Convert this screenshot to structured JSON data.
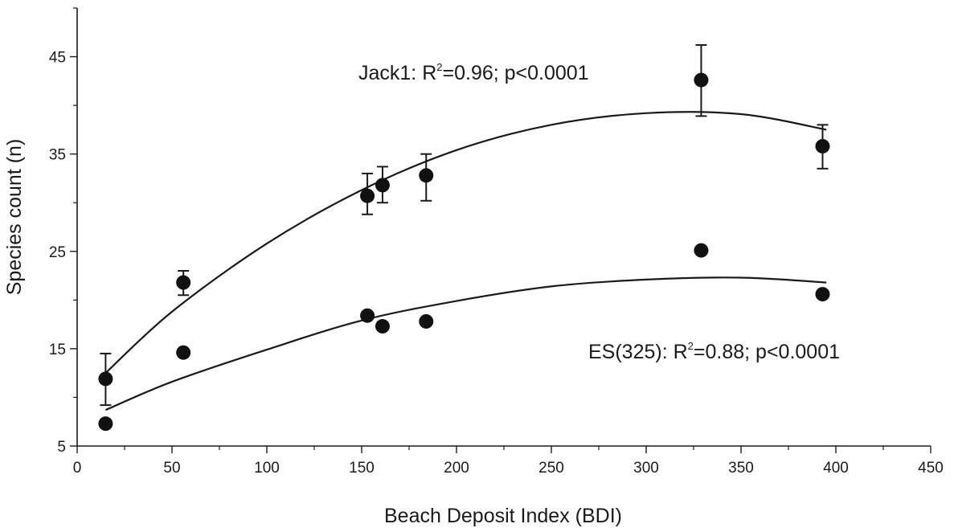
{
  "chart_data": {
    "type": "scatter",
    "xlabel": "Beach Deposit Index (BDI)",
    "ylabel": "Species count (n)",
    "xlim": [
      0,
      450
    ],
    "ylim": [
      5,
      50
    ],
    "x_ticks": [
      0,
      50,
      100,
      150,
      200,
      250,
      300,
      350,
      400,
      450
    ],
    "y_ticks": [
      5,
      15,
      25,
      35,
      45
    ],
    "grid": false,
    "series": [
      {
        "points": [
          {
            "x": 15,
            "y": 11.9,
            "err_low": 9.2,
            "err_high": 14.5
          },
          {
            "x": 56,
            "y": 21.8,
            "err_low": 20.5,
            "err_high": 23.0
          },
          {
            "x": 153,
            "y": 30.7,
            "err_low": 28.8,
            "err_high": 33.0
          },
          {
            "x": 161,
            "y": 31.8,
            "err_low": 30.0,
            "err_high": 33.7
          },
          {
            "x": 184,
            "y": 32.8,
            "err_low": 30.2,
            "err_high": 35.0
          },
          {
            "x": 329,
            "y": 42.6,
            "err_low": 38.9,
            "err_high": 46.2
          },
          {
            "x": 393,
            "y": 35.8,
            "err_low": 33.5,
            "err_high": 38.0
          }
        ],
        "fit": [
          [
            15,
            12.5
          ],
          [
            50,
            18.8
          ],
          [
            100,
            25.8
          ],
          [
            150,
            31.3
          ],
          [
            200,
            35.4
          ],
          [
            250,
            38.0
          ],
          [
            300,
            39.2
          ],
          [
            350,
            39.1
          ],
          [
            395,
            37.5
          ]
        ]
      },
      {
        "points": [
          {
            "x": 15,
            "y": 7.3
          },
          {
            "x": 56,
            "y": 14.6
          },
          {
            "x": 153,
            "y": 18.4
          },
          {
            "x": 161,
            "y": 17.3
          },
          {
            "x": 184,
            "y": 17.8
          },
          {
            "x": 329,
            "y": 25.1
          },
          {
            "x": 393,
            "y": 20.6
          }
        ],
        "fit": [
          [
            15,
            8.7
          ],
          [
            50,
            11.6
          ],
          [
            100,
            14.9
          ],
          [
            150,
            17.9
          ],
          [
            200,
            19.9
          ],
          [
            250,
            21.4
          ],
          [
            300,
            22.1
          ],
          [
            350,
            22.3
          ],
          [
            395,
            21.8
          ]
        ]
      }
    ],
    "annotations": [
      {
        "pre": "Jack1: R",
        "sup": "2",
        "post": "=0.96; p<0.0001"
      },
      {
        "pre": "ES(325): R",
        "sup": "2",
        "post": "=0.88; p<0.0001"
      }
    ]
  }
}
